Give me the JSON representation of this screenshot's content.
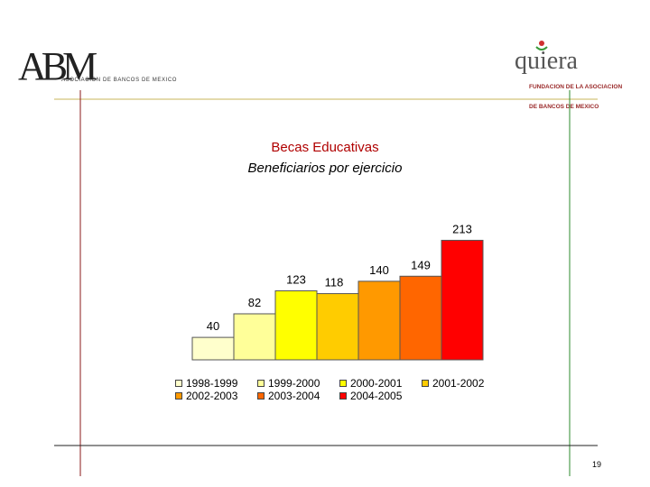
{
  "header": {
    "left_logo": {
      "mark": "ABM",
      "subtitle": "ASOCIACION DE BANCOS DE MEXICO"
    },
    "right_logo": {
      "mark": "quiera",
      "subtitle_lines": [
        "FUNDACION DE LA ASOCIACION",
        "DE BANCOS DE MEXICO"
      ]
    }
  },
  "chart_data": {
    "type": "bar",
    "title": "Becas Educativas",
    "subtitle": "Beneficiarios por ejercicio",
    "categories": [
      "1998-1999",
      "1999-2000",
      "2000-2001",
      "2001-2002",
      "2002-2003",
      "2003-2004",
      "2004-2005"
    ],
    "values": [
      40,
      82,
      123,
      118,
      140,
      149,
      213
    ],
    "colors": [
      "#FFFFCC",
      "#FFFF99",
      "#FFFF00",
      "#FFCC00",
      "#FF9900",
      "#FF6600",
      "#FF0000"
    ],
    "ylim": [
      0,
      240
    ],
    "legend": {
      "position": "bottom"
    }
  },
  "footer": {
    "page_number": "19"
  },
  "colors": {
    "accent_green": "#2e8b2e",
    "accent_red": "#8b1a1a",
    "title_red": "#b00000"
  }
}
